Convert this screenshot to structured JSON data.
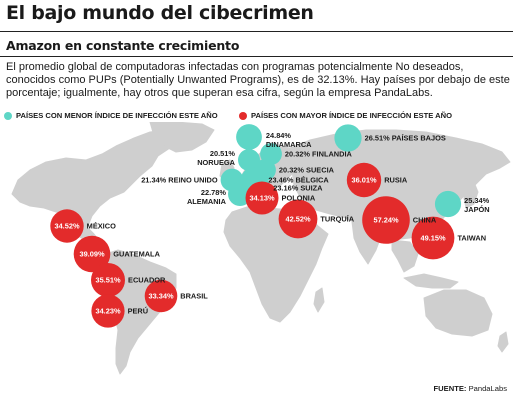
{
  "title": "El bajo mundo del cibecrimen",
  "subtitle": "Amazon en constante crecimiento",
  "description": "El promedio global de computadoras infectadas con programas potencialmente No deseados, conocidos como PUPs (Potentially Unwanted Programs), es de 32.13%. Hay países por debajo de este porcentaje; igualmente, hay otros que superan esa cifra, según la empresa PandaLabs.",
  "legend": {
    "low": "PAÍSES CON MENOR ÍNDICE DE INFECCIÓN ESTE AÑO",
    "high": "PAÍSES CON MAYOR ÍNDICE DE INFECCIÓN ESTE AÑO"
  },
  "source": {
    "label": "FUENTE:",
    "value": "PandaLabs"
  },
  "colors": {
    "low": "#5ed6c6",
    "high": "#e32b2b",
    "land": "#cfcfcf"
  },
  "chart_data": {
    "type": "bubble-map",
    "title": "El bajo mundo del cibecrimen",
    "subtitle": "Amazon en constante crecimiento",
    "unit": "%",
    "average": 32.13,
    "series": [
      {
        "name": "PAÍSES CON MENOR ÍNDICE DE INFECCIÓN ESTE AÑO",
        "group": "low",
        "points": [
          {
            "country": "DINAMARCA",
            "value": 24.84,
            "label": "24.84%"
          },
          {
            "country": "PAÍSES BAJOS",
            "value": 26.51,
            "label": "26.51%"
          },
          {
            "country": "NORUEGA",
            "value": 20.51,
            "label": "20.51%"
          },
          {
            "country": "FINLANDIA",
            "value": 20.32,
            "label": "20.32%"
          },
          {
            "country": "SUECIA",
            "value": 20.32,
            "label": "20.32%"
          },
          {
            "country": "REINO UNIDO",
            "value": 21.34,
            "label": "21.34%"
          },
          {
            "country": "BÉLGICA",
            "value": 23.46,
            "label": "23.46%"
          },
          {
            "country": "SUIZA",
            "value": 23.16,
            "label": "23.16%"
          },
          {
            "country": "ALEMANIA",
            "value": 22.78,
            "label": "22.78%"
          },
          {
            "country": "JAPÓN",
            "value": 25.34,
            "label": "25.34%"
          }
        ]
      },
      {
        "name": "PAÍSES CON MAYOR ÍNDICE DE INFECCIÓN ESTE AÑO",
        "group": "high",
        "points": [
          {
            "country": "RUSIA",
            "value": 36.01,
            "label": "36.01%"
          },
          {
            "country": "POLONIA",
            "value": 34.13,
            "label": "34.13%"
          },
          {
            "country": "TURQUÍA",
            "value": 42.52,
            "label": "42.52%"
          },
          {
            "country": "CHINA",
            "value": 57.24,
            "label": "57.24%"
          },
          {
            "country": "TAIWAN",
            "value": 49.15,
            "label": "49.15%"
          },
          {
            "country": "MÉXICO",
            "value": 34.52,
            "label": "34.52%"
          },
          {
            "country": "GUATEMALA",
            "value": 39.09,
            "label": "39.09%"
          },
          {
            "country": "ECUADOR",
            "value": 35.51,
            "label": "35.51%"
          },
          {
            "country": "BRASIL",
            "value": 33.34,
            "label": "33.34%"
          },
          {
            "country": "PERÚ",
            "value": 34.23,
            "label": "34.23%"
          }
        ]
      }
    ]
  }
}
